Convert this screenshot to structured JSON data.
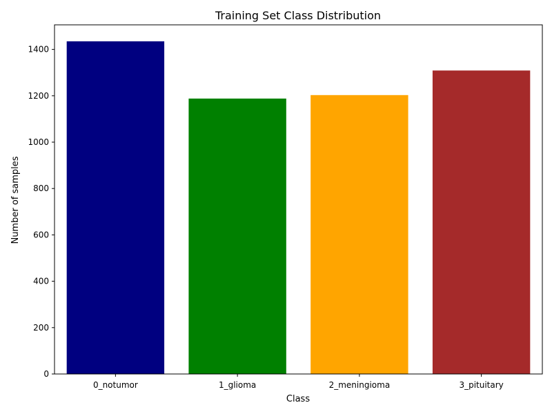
{
  "chart_data": {
    "type": "bar",
    "title": "Training Set Class Distribution",
    "xlabel": "Class",
    "ylabel": "Number of samples",
    "categories": [
      "0_notumor",
      "1_glioma",
      "2_meningioma",
      "3_pituitary"
    ],
    "values": [
      1435,
      1188,
      1203,
      1309
    ],
    "colors": [
      "#000080",
      "#008000",
      "#ffa500",
      "#a52a2a"
    ],
    "ylim": [
      0,
      1506
    ],
    "yticks": [
      0,
      200,
      400,
      600,
      800,
      1000,
      1200,
      1400
    ],
    "grid": false,
    "legend": false
  }
}
